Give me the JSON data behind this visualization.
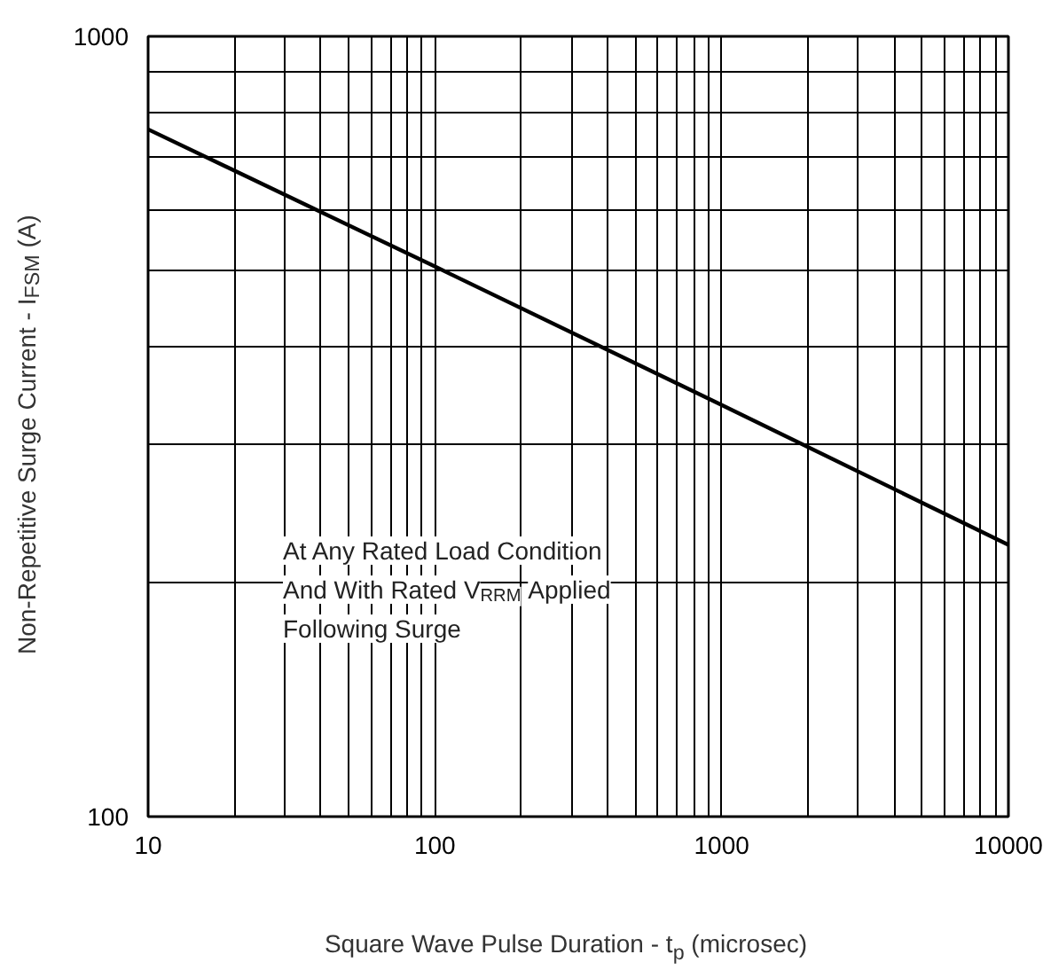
{
  "chart_data": {
    "type": "line",
    "xlabel": "Square Wave Pulse Duration - t$_{p}$ (microsec)",
    "ylabel": "Non-Repetitive Surge Current - I$_{FSM}$ (A)",
    "log": "xy",
    "grid": true,
    "marker": "none",
    "line_style": "solid",
    "x": [
      10,
      100,
      1000,
      10000
    ],
    "series": [
      {
        "color": "#000000",
        "values": [
          760,
          507,
          337,
          223
        ]
      }
    ],
    "xlim": [
      10,
      10000
    ],
    "ylim": [
      100,
      1000
    ],
    "xticks": [
      10,
      {
        "value": 20,
        "label": null
      },
      {
        "value": 30,
        "label": null
      },
      {
        "value": 40,
        "label": null
      },
      {
        "value": 50,
        "label": null
      },
      {
        "value": 60,
        "label": null
      },
      {
        "value": 70,
        "label": null
      },
      {
        "value": 80,
        "label": null
      },
      {
        "value": 90,
        "label": null
      },
      100,
      {
        "value": 200,
        "label": null
      },
      {
        "value": 300,
        "label": null
      },
      {
        "value": 400,
        "label": null
      },
      {
        "value": 500,
        "label": null
      },
      {
        "value": 600,
        "label": null
      },
      {
        "value": 700,
        "label": null
      },
      {
        "value": 800,
        "label": null
      },
      {
        "value": 900,
        "label": null
      },
      1000,
      {
        "value": 2000,
        "label": null
      },
      {
        "value": 3000,
        "label": null
      },
      {
        "value": 4000,
        "label": null
      },
      {
        "value": 5000,
        "label": null
      },
      {
        "value": 6000,
        "label": null
      },
      {
        "value": 7000,
        "label": null
      },
      {
        "value": 8000,
        "label": null
      },
      {
        "value": 9000,
        "label": null
      },
      10000
    ],
    "yticks": [
      100,
      {
        "value": 200,
        "label": null
      },
      {
        "value": 300,
        "label": null
      },
      {
        "value": 400,
        "label": null
      },
      {
        "value": 500,
        "label": null
      },
      {
        "value": 600,
        "label": null
      },
      {
        "value": 700,
        "label": null
      },
      {
        "value": 800,
        "label": null
      },
      {
        "value": 900,
        "label": null
      },
      1000
    ],
    "annotations": [
      "At Any Rated Load Condition",
      "And With Rated V$_{RRM}$ Applied",
      "Following Surge"
    ]
  }
}
